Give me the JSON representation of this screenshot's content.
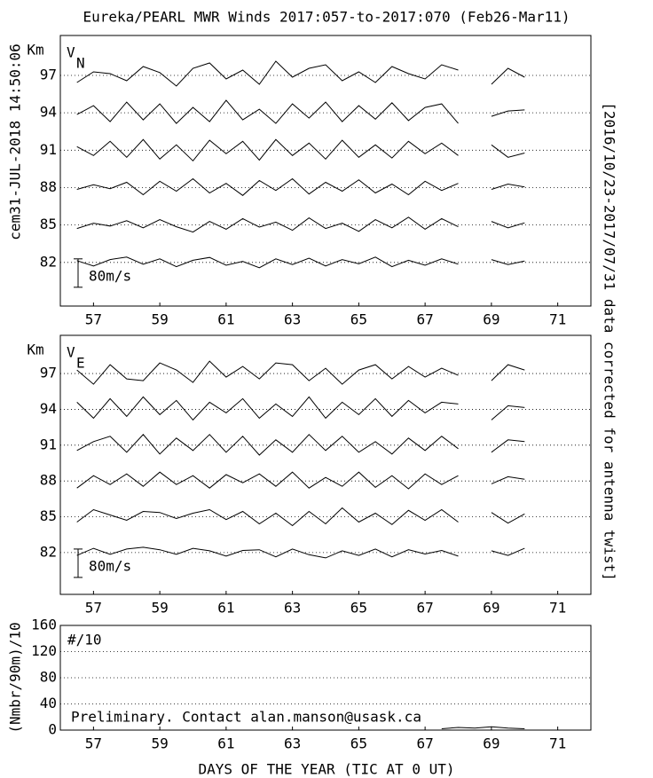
{
  "title": "Eureka/PEARL MWR Winds 2017:057-to-2017:070 (Feb26-Mar11)",
  "timestamp": "cem31-JUL-2018 14:50:06",
  "side_note": "[2016/10/23-2017/07/31 data corrected for antenna twist]",
  "xlabel": "DAYS OF THE YEAR (TIC AT 0 UT)",
  "chart_data": [
    {
      "type": "line",
      "ylabel": "Km",
      "symbol": "V",
      "subscript": "N",
      "xlim": [
        56,
        72
      ],
      "xticks": [
        57,
        59,
        61,
        63,
        65,
        67,
        69,
        71
      ],
      "ylim": [
        78.5,
        100.2
      ],
      "yticks": [
        82,
        85,
        88,
        91,
        94,
        97
      ],
      "grid": true,
      "scale_bar": {
        "value": 80,
        "label": "80m/s"
      },
      "x": [
        56.5,
        57,
        57.5,
        58,
        58.5,
        59,
        59.5,
        60,
        60.5,
        61,
        61.5,
        62,
        62.5,
        63,
        63.5,
        64,
        64.5,
        65,
        65.5,
        66,
        66.5,
        67,
        67.5,
        68,
        68.5,
        69,
        69.5,
        70
      ],
      "series": [
        {
          "color": "#000000",
          "values": [
            5,
            -10,
            8,
            15,
            -5,
            10,
            -12,
            6,
            14,
            -8,
            3,
            -15,
            10,
            -6,
            12,
            -10,
            8,
            -4,
            15,
            -12,
            6,
            -8,
            10,
            -5,
            null,
            8,
            -6,
            4
          ]
        },
        {
          "color": "#000000",
          "values": [
            -10,
            5,
            -3,
            12,
            -8,
            15,
            -5,
            -20,
            10,
            -12,
            18,
            -6,
            8,
            -15,
            20,
            -10,
            5,
            -18,
            15,
            -8,
            22,
            -12,
            18,
            -5,
            null,
            10,
            -8,
            6
          ]
        },
        {
          "color": "#000000",
          "values": [
            -5,
            8,
            -3,
            15,
            -20,
            18,
            -10,
            25,
            -15,
            12,
            -22,
            20,
            -8,
            25,
            -18,
            15,
            -10,
            22,
            -15,
            10,
            -20,
            18,
            -8,
            12,
            null,
            -5,
            10,
            2
          ]
        },
        {
          "color": "#000000",
          "values": [
            10,
            -15,
            25,
            -20,
            30,
            -25,
            15,
            -30,
            28,
            -10,
            25,
            -28,
            30,
            -15,
            20,
            -25,
            28,
            -20,
            15,
            -22,
            25,
            -10,
            20,
            -15,
            null,
            15,
            -20,
            -8
          ]
        },
        {
          "color": "#000000",
          "values": [
            -5,
            20,
            -25,
            30,
            -20,
            25,
            -30,
            15,
            -25,
            35,
            -20,
            10,
            -30,
            25,
            -15,
            30,
            -25,
            20,
            -18,
            28,
            -22,
            15,
            25,
            -30,
            null,
            -10,
            5,
            8
          ]
        },
        {
          "color": "#000000",
          "values": [
            -20,
            10,
            5,
            -15,
            25,
            8,
            -30,
            20,
            35,
            -10,
            15,
            -25,
            40,
            -5,
            20,
            30,
            -15,
            10,
            -20,
            25,
            5,
            -10,
            30,
            15,
            null,
            -25,
            20,
            -5
          ]
        }
      ]
    },
    {
      "type": "line",
      "ylabel": "Km",
      "symbol": "V",
      "subscript": "E",
      "xlim": [
        56,
        72
      ],
      "xticks": [
        57,
        59,
        61,
        63,
        65,
        67,
        69,
        71
      ],
      "ylim": [
        78.5,
        100.2
      ],
      "yticks": [
        82,
        85,
        88,
        91,
        94,
        97
      ],
      "grid": true,
      "scale_bar": {
        "value": 80,
        "label": "80m/s"
      },
      "x": [
        56.5,
        57,
        57.5,
        58,
        58.5,
        59,
        59.5,
        60,
        60.5,
        61,
        61.5,
        62,
        62.5,
        63,
        63.5,
        64,
        64.5,
        65,
        65.5,
        66,
        66.5,
        67,
        67.5,
        68,
        68.5,
        69,
        69.5,
        70
      ],
      "series": [
        {
          "color": "#000000",
          "values": [
            -8,
            12,
            -5,
            10,
            15,
            8,
            -5,
            12,
            5,
            -10,
            6,
            8,
            -12,
            10,
            -6,
            -15,
            5,
            -8,
            10,
            -12,
            8,
            -4,
            6,
            -10,
            null,
            5,
            -8,
            12
          ]
        },
        {
          "color": "#000000",
          "values": [
            -15,
            20,
            5,
            -10,
            15,
            12,
            -5,
            10,
            20,
            -8,
            15,
            -20,
            10,
            -25,
            15,
            -20,
            25,
            -15,
            10,
            -22,
            18,
            -10,
            20,
            -15,
            null,
            12,
            -18,
            8
          ]
        },
        {
          "color": "#000000",
          "values": [
            -20,
            15,
            -10,
            20,
            -15,
            25,
            -10,
            15,
            -20,
            18,
            -5,
            20,
            -15,
            25,
            -20,
            10,
            -15,
            25,
            -18,
            15,
            -22,
            20,
            -10,
            15,
            null,
            -8,
            12,
            5
          ]
        },
        {
          "color": "#000000",
          "values": [
            -15,
            10,
            25,
            -20,
            30,
            -25,
            20,
            -15,
            30,
            -20,
            25,
            -28,
            15,
            -20,
            30,
            -15,
            25,
            -20,
            10,
            -25,
            20,
            -15,
            25,
            -10,
            null,
            -20,
            15,
            10
          ]
        },
        {
          "color": "#000000",
          "values": [
            20,
            -25,
            30,
            -20,
            35,
            -15,
            25,
            -30,
            20,
            -10,
            30,
            -25,
            15,
            -20,
            35,
            -25,
            20,
            -15,
            30,
            -20,
            25,
            -10,
            20,
            15,
            null,
            -30,
            10,
            5
          ]
        },
        {
          "color": "#000000",
          "values": [
            10,
            -30,
            25,
            -15,
            -20,
            30,
            10,
            -25,
            35,
            -10,
            20,
            -15,
            30,
            25,
            -20,
            15,
            -30,
            10,
            25,
            -15,
            20,
            -10,
            15,
            -5,
            null,
            -20,
            25,
            10
          ]
        }
      ]
    },
    {
      "type": "count",
      "ylabel": "(Nmbr/90m)/10",
      "symbol": "#/10",
      "annotation": "Preliminary. Contact alan.manson@usask.ca",
      "xlim": [
        56,
        72
      ],
      "xticks": [
        57,
        59,
        61,
        63,
        65,
        67,
        69,
        71
      ],
      "ylim": [
        0,
        160
      ],
      "yticks": [
        0,
        40,
        80,
        120,
        160
      ],
      "grid": true,
      "x": [
        67.5,
        68,
        68.5,
        69,
        69.5,
        70
      ],
      "series": [
        {
          "color": "#000000",
          "values": [
            2,
            4,
            3,
            5,
            3,
            2
          ]
        }
      ]
    }
  ]
}
